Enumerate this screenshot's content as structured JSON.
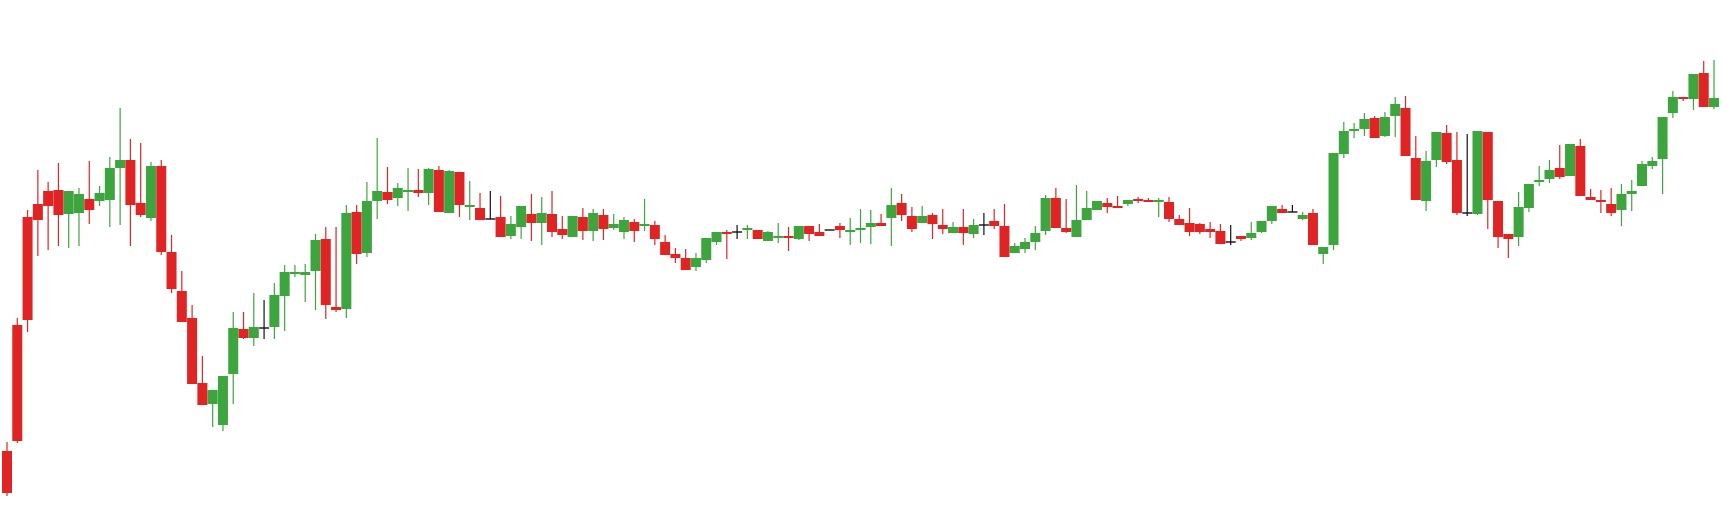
{
  "chart_data": {
    "type": "candlestick",
    "y_range": [
      0,
      507
    ],
    "grid": false,
    "colors": {
      "up": "#3da53d",
      "down": "#e02424",
      "doji": "#111111"
    },
    "candles": [
      [
        451,
        442,
        496,
        493
      ],
      [
        325,
        318,
        443,
        441
      ],
      [
        217,
        210,
        332,
        320
      ],
      [
        204,
        170,
        256,
        220
      ],
      [
        191,
        182,
        250,
        206
      ],
      [
        190,
        163,
        246,
        215
      ],
      [
        214,
        194,
        248,
        191
      ],
      [
        213,
        188,
        246,
        194
      ],
      [
        199,
        161,
        224,
        210
      ],
      [
        201,
        186,
        206,
        193
      ],
      [
        200,
        157,
        227,
        168
      ],
      [
        168,
        108,
        225,
        160
      ],
      [
        160,
        139,
        246,
        205
      ],
      [
        203,
        143,
        217,
        215
      ],
      [
        218,
        162,
        221,
        166
      ],
      [
        166,
        160,
        255,
        252
      ],
      [
        252,
        235,
        293,
        289
      ],
      [
        291,
        271,
        320,
        322
      ],
      [
        318,
        305,
        339,
        384
      ],
      [
        383,
        356,
        401,
        405
      ],
      [
        404,
        391,
        427,
        390
      ],
      [
        425,
        391,
        431,
        376
      ],
      [
        374,
        312,
        404,
        328
      ],
      [
        329,
        312,
        339,
        338
      ],
      [
        338,
        293,
        346,
        327
      ],
      [
        328,
        300,
        339,
        328
      ],
      [
        327,
        283,
        339,
        295
      ],
      [
        296,
        265,
        331,
        272
      ],
      [
        274,
        265,
        277,
        272
      ],
      [
        275,
        264,
        302,
        272
      ],
      [
        271,
        234,
        310,
        240
      ],
      [
        239,
        227,
        319,
        305
      ],
      [
        307,
        227,
        312,
        310
      ],
      [
        309,
        205,
        318,
        213
      ],
      [
        212,
        205,
        264,
        254
      ],
      [
        253,
        182,
        257,
        201
      ],
      [
        201,
        138,
        219,
        191
      ],
      [
        192,
        167,
        204,
        200
      ],
      [
        198,
        183,
        206,
        188
      ],
      [
        191,
        168,
        211,
        190
      ],
      [
        190,
        169,
        197,
        193
      ],
      [
        193,
        168,
        205,
        169
      ],
      [
        170,
        166,
        206,
        212
      ],
      [
        213,
        170,
        210,
        171
      ],
      [
        172,
        177,
        217,
        205
      ],
      [
        206,
        181,
        220,
        205
      ],
      [
        208,
        193,
        217,
        220
      ],
      [
        219,
        191,
        219,
        219
      ],
      [
        217,
        196,
        228,
        237
      ],
      [
        236,
        216,
        239,
        224
      ],
      [
        227,
        206,
        239,
        206
      ],
      [
        214,
        194,
        241,
        223
      ],
      [
        223,
        197,
        245,
        213
      ],
      [
        214,
        191,
        237,
        232
      ],
      [
        229,
        216,
        239,
        235
      ],
      [
        237,
        224,
        236,
        216
      ],
      [
        217,
        208,
        240,
        231
      ],
      [
        231,
        209,
        241,
        213
      ],
      [
        215,
        209,
        240,
        229
      ],
      [
        228,
        214,
        230,
        224
      ],
      [
        232,
        217,
        239,
        220
      ],
      [
        222,
        219,
        242,
        231
      ],
      [
        226,
        199,
        231,
        224
      ],
      [
        225,
        221,
        245,
        239
      ],
      [
        242,
        235,
        253,
        255
      ],
      [
        254,
        248,
        263,
        258
      ],
      [
        258,
        249,
        261,
        270
      ],
      [
        267,
        253,
        271,
        258
      ],
      [
        260,
        242,
        263,
        238
      ],
      [
        242,
        232,
        245,
        232
      ],
      [
        232,
        230,
        259,
        234
      ],
      [
        232,
        225,
        239,
        232
      ],
      [
        230,
        225,
        239,
        228
      ],
      [
        230,
        236,
        236,
        239
      ],
      [
        241,
        231,
        237,
        232
      ],
      [
        238,
        223,
        243,
        236
      ],
      [
        236,
        227,
        251,
        238
      ],
      [
        239,
        226,
        240,
        226
      ],
      [
        226,
        226,
        241,
        234
      ],
      [
        232,
        224,
        232,
        236
      ],
      [
        230,
        230,
        230,
        230
      ],
      [
        226,
        223,
        238,
        230
      ],
      [
        232,
        218,
        245,
        230
      ],
      [
        230,
        209,
        243,
        228
      ],
      [
        227,
        210,
        244,
        223
      ],
      [
        223,
        214,
        226,
        226
      ],
      [
        218,
        188,
        246,
        205
      ],
      [
        203,
        194,
        221,
        215
      ],
      [
        216,
        207,
        232,
        229
      ],
      [
        223,
        206,
        223,
        216
      ],
      [
        215,
        213,
        239,
        224
      ],
      [
        225,
        209,
        234,
        229
      ],
      [
        233,
        222,
        229,
        227
      ],
      [
        227,
        209,
        245,
        233
      ],
      [
        234,
        219,
        238,
        225
      ],
      [
        225,
        213,
        235,
        225
      ],
      [
        221,
        209,
        229,
        226
      ],
      [
        226,
        204,
        255,
        257
      ],
      [
        253,
        243,
        251,
        246
      ],
      [
        249,
        238,
        253,
        242
      ],
      [
        242,
        226,
        250,
        233
      ],
      [
        231,
        195,
        235,
        198
      ],
      [
        198,
        188,
        204,
        228
      ],
      [
        228,
        199,
        233,
        232
      ],
      [
        237,
        185,
        236,
        220
      ],
      [
        220,
        191,
        212,
        208
      ],
      [
        210,
        206,
        208,
        201
      ],
      [
        203,
        198,
        213,
        207
      ],
      [
        206,
        196,
        203,
        207
      ],
      [
        204,
        201,
        206,
        200
      ],
      [
        199,
        197,
        203,
        200
      ],
      [
        200,
        198,
        202,
        202
      ],
      [
        201,
        198,
        217,
        200
      ],
      [
        202,
        197,
        222,
        219
      ],
      [
        219,
        215,
        225,
        225
      ],
      [
        223,
        208,
        236,
        232
      ],
      [
        224,
        223,
        234,
        232
      ],
      [
        229,
        222,
        238,
        232
      ],
      [
        231,
        224,
        243,
        244
      ],
      [
        242,
        225,
        245,
        242
      ],
      [
        236,
        236,
        241,
        239
      ],
      [
        238,
        222,
        240,
        233
      ],
      [
        232,
        221,
        233,
        221
      ],
      [
        221,
        209,
        224,
        206
      ],
      [
        209,
        205,
        212,
        213
      ],
      [
        212,
        205,
        207,
        212
      ],
      [
        219,
        212,
        220,
        215
      ],
      [
        213,
        209,
        222,
        245
      ],
      [
        254,
        255,
        264,
        247
      ],
      [
        245,
        234,
        250,
        153
      ],
      [
        154,
        122,
        158,
        131
      ],
      [
        131,
        123,
        138,
        129
      ],
      [
        129,
        113,
        136,
        119
      ],
      [
        118,
        116,
        128,
        138
      ],
      [
        136,
        112,
        137,
        117
      ],
      [
        116,
        97,
        137,
        104
      ],
      [
        108,
        96,
        154,
        156
      ],
      [
        158,
        136,
        164,
        200
      ],
      [
        201,
        151,
        211,
        161
      ],
      [
        160,
        148,
        167,
        132
      ],
      [
        133,
        125,
        164,
        162
      ],
      [
        160,
        132,
        215,
        213
      ],
      [
        213,
        134,
        216,
        213
      ],
      [
        214,
        131,
        215,
        131
      ],
      [
        132,
        163,
        229,
        200
      ],
      [
        201,
        201,
        248,
        237
      ],
      [
        234,
        237,
        258,
        239
      ],
      [
        237,
        192,
        246,
        207
      ],
      [
        208,
        184,
        212,
        184
      ],
      [
        182,
        166,
        186,
        180
      ],
      [
        179,
        160,
        183,
        170
      ],
      [
        168,
        145,
        179,
        177
      ],
      [
        176,
        145,
        172,
        144
      ],
      [
        146,
        139,
        193,
        196
      ],
      [
        197,
        189,
        200,
        200
      ],
      [
        200,
        190,
        213,
        201
      ],
      [
        204,
        188,
        216,
        213
      ],
      [
        210,
        184,
        226,
        194
      ],
      [
        194,
        180,
        211,
        191
      ],
      [
        186,
        161,
        186,
        164
      ],
      [
        166,
        157,
        169,
        161
      ],
      [
        159,
        120,
        194,
        117
      ],
      [
        113,
        91,
        118,
        97
      ],
      [
        97,
        99,
        101,
        99
      ],
      [
        99,
        81,
        110,
        74
      ],
      [
        73,
        61,
        78,
        107
      ],
      [
        107,
        60,
        109,
        98
      ]
    ]
  }
}
